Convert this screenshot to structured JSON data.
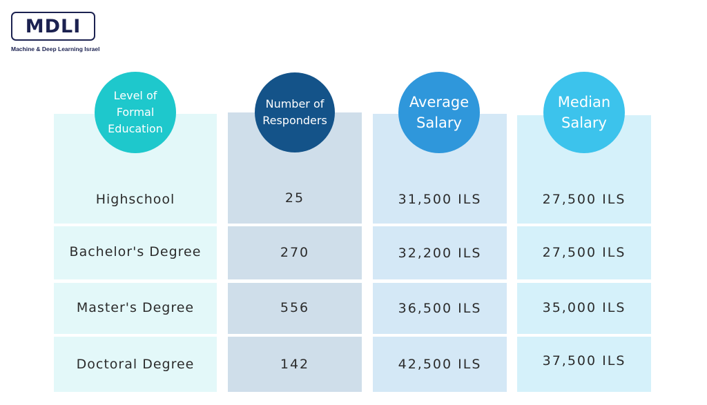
{
  "logo": {
    "title": "MDLI",
    "subtitle": "Machine & Deep Learning Israel"
  },
  "colors": {
    "education_header": "#1ec8cc",
    "responders_header": "#145389",
    "average_header": "#2f97db",
    "median_header": "#3cc3ec",
    "education_cells": "#e3f8f9",
    "responders_cells": "#cfdeea",
    "average_cells": "#d4e8f6",
    "median_cells": "#d5f1fa"
  },
  "chart_data": {
    "type": "table",
    "columns": [
      {
        "key": "education",
        "header_lines": [
          "Level of",
          "Formal",
          "Education"
        ]
      },
      {
        "key": "responders",
        "header_lines": [
          "Number of",
          "Responders"
        ]
      },
      {
        "key": "average",
        "header_lines": [
          "Average",
          "Salary"
        ]
      },
      {
        "key": "median",
        "header_lines": [
          "Median",
          "Salary"
        ]
      }
    ],
    "rows": [
      {
        "education": "Highschool",
        "responders": "25",
        "average": "31,500 ILS",
        "median": "27,500 ILS"
      },
      {
        "education": "Bachelor's Degree",
        "responders": "270",
        "average": "32,200 ILS",
        "median": "27,500 ILS"
      },
      {
        "education": "Master's Degree",
        "responders": "556",
        "average": "36,500 ILS",
        "median": "35,000 ILS"
      },
      {
        "education": "Doctoral Degree",
        "responders": "142",
        "average": "42,500 ILS",
        "median": "37,500 ILS"
      }
    ],
    "values": {
      "responders": [
        25,
        270,
        556,
        142
      ],
      "average_salary_ils": [
        31500,
        32200,
        36500,
        42500
      ],
      "median_salary_ils": [
        27500,
        27500,
        35000,
        37500
      ]
    }
  }
}
